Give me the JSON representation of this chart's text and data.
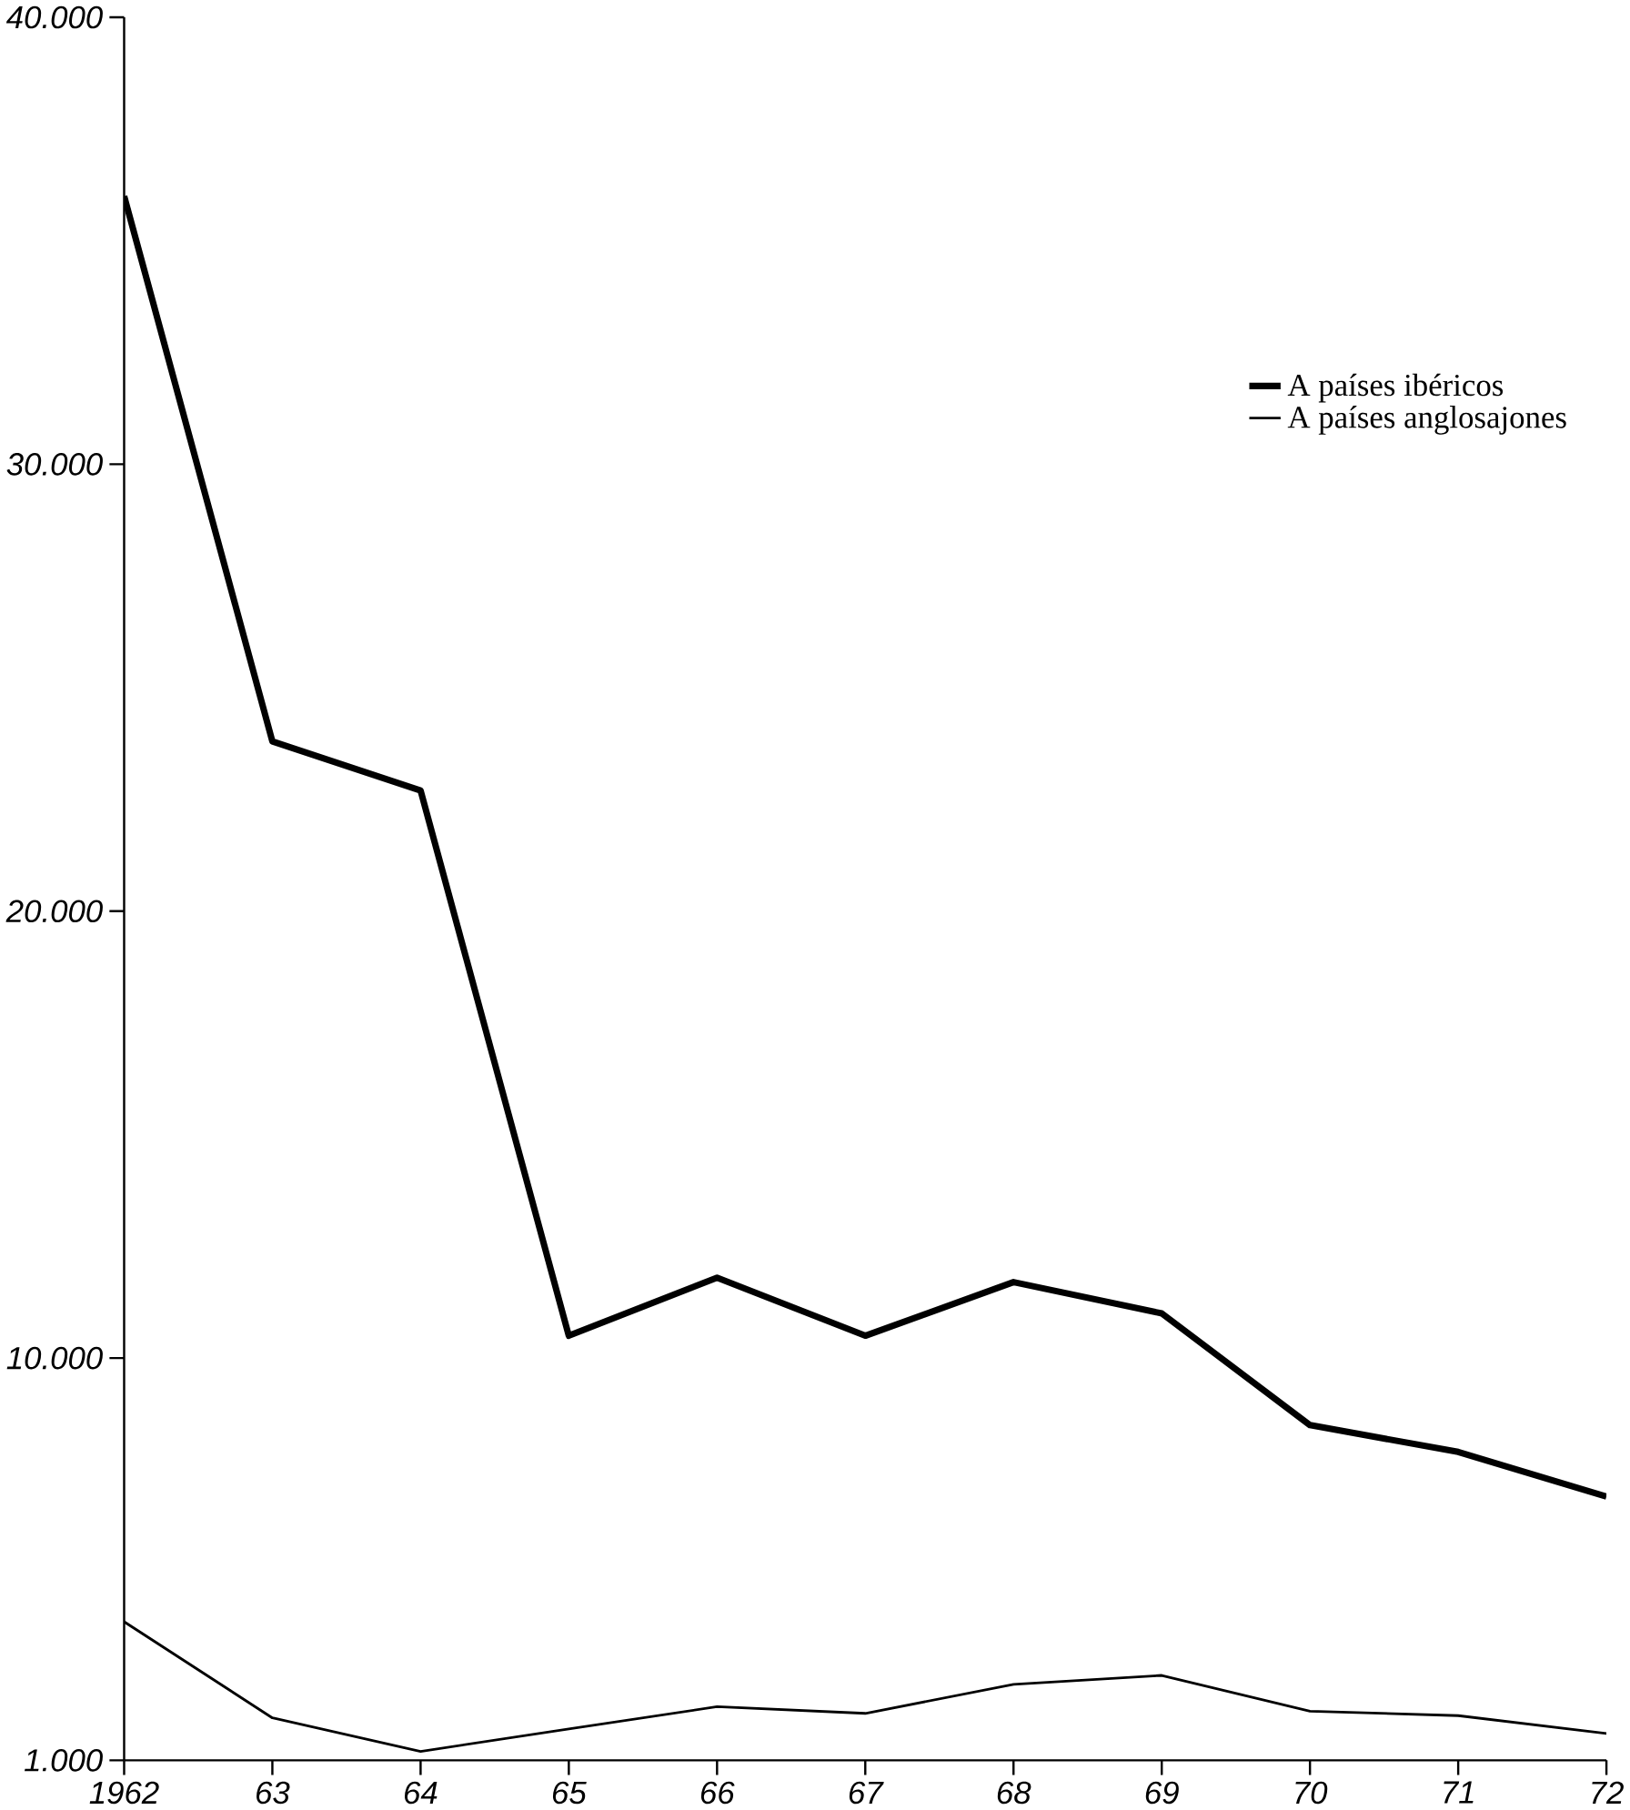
{
  "chart_data": {
    "type": "line",
    "categories": [
      "1962",
      "63",
      "64",
      "65",
      "66",
      "67",
      "68",
      "69",
      "70",
      "71",
      "72"
    ],
    "series": [
      {
        "name": "A países ibéricos",
        "color": "#000000",
        "values": [
          36000,
          23800,
          22700,
          10500,
          11800,
          10500,
          11700,
          11000,
          8500,
          7900,
          6900
        ]
      },
      {
        "name": "A países anglosajones",
        "color": "#000000",
        "values": [
          4100,
          1950,
          1200,
          1700,
          2200,
          2050,
          2700,
          2900,
          2100,
          2000,
          1600
        ]
      }
    ],
    "ylim": [
      1000,
      40000
    ],
    "yticks": [
      {
        "value": 1000,
        "label": "1.000"
      },
      {
        "value": 10000,
        "label": "10.000"
      },
      {
        "value": 20000,
        "label": "20.000"
      },
      {
        "value": 30000,
        "label": "30.000"
      },
      {
        "value": 40000,
        "label": "40.000"
      }
    ],
    "legend": "top right",
    "grid": false,
    "marker": "none",
    "line_style": "solid"
  }
}
